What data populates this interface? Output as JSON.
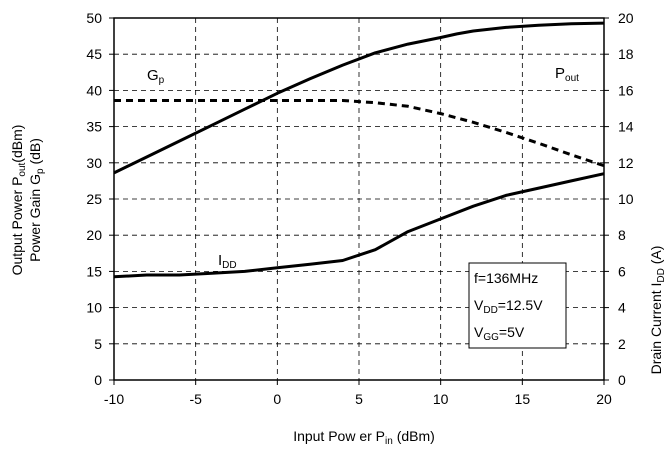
{
  "chart_data": {
    "type": "line",
    "xlabel": "Input Pow er P",
    "xlabel_sub": "in",
    "xlabel_unit": " (dBm)",
    "ylabel_left_line1": "Output Power P",
    "ylabel_left_line1_sub": "out",
    "ylabel_left_line1_unit": "(dBm)",
    "ylabel_left_line2": "Power Gain G",
    "ylabel_left_line2_sub": "p",
    "ylabel_left_line2_unit": " (dB)",
    "ylabel_right": "Drain Current I",
    "ylabel_right_sub": "DD",
    "ylabel_right_unit": " (A)",
    "xlim": [
      -10,
      20
    ],
    "ylim_left": [
      0,
      50
    ],
    "ylim_right": [
      0,
      20
    ],
    "x_ticks": [
      "-10",
      "-5",
      "0",
      "5",
      "10",
      "15",
      "20"
    ],
    "y_left_ticks": [
      "0",
      "5",
      "10",
      "15",
      "20",
      "25",
      "30",
      "35",
      "40",
      "45",
      "50"
    ],
    "y_right_ticks": [
      "0",
      "2",
      "4",
      "6",
      "8",
      "10",
      "12",
      "14",
      "16",
      "18",
      "20"
    ],
    "grid": true,
    "series": [
      {
        "name": "Pout",
        "label": "P",
        "label_sub": "out",
        "axis": "left",
        "style": "solid",
        "x": [
          -10,
          -8,
          -6,
          -4,
          -2,
          0,
          2,
          4,
          6,
          8,
          10,
          11,
          12,
          14,
          16,
          18,
          20
        ],
        "y": [
          28.6,
          30.8,
          33.0,
          35.2,
          37.4,
          39.6,
          41.6,
          43.5,
          45.2,
          46.4,
          47.3,
          47.8,
          48.2,
          48.7,
          49.0,
          49.2,
          49.3
        ]
      },
      {
        "name": "Gp",
        "label": "G",
        "label_sub": "p",
        "axis": "left",
        "style": "dashed",
        "x": [
          -10,
          -6,
          -2,
          0,
          2,
          4,
          6,
          8,
          10,
          12,
          14,
          16,
          18,
          20
        ],
        "y": [
          38.6,
          38.6,
          38.6,
          38.6,
          38.6,
          38.6,
          38.3,
          37.8,
          36.8,
          35.6,
          34.2,
          32.7,
          31.1,
          29.6
        ]
      },
      {
        "name": "IDD",
        "label": "I",
        "label_sub": "DD",
        "axis": "right",
        "style": "solid",
        "x": [
          -10,
          -8,
          -6,
          -4,
          -2,
          0,
          2,
          4,
          6,
          8,
          10,
          12,
          14,
          16,
          18,
          20
        ],
        "y": [
          5.7,
          5.8,
          5.8,
          5.9,
          6.0,
          6.2,
          6.4,
          6.6,
          7.2,
          8.2,
          8.9,
          9.6,
          10.2,
          10.6,
          11.0,
          11.4
        ]
      }
    ],
    "annotation": {
      "line1": "f=136MHz",
      "line2_main": "V",
      "line2_sub": "DD",
      "line2_rest": "=12.5V",
      "line3_main": "V",
      "line3_sub": "GG",
      "line3_rest": "=5V"
    }
  }
}
